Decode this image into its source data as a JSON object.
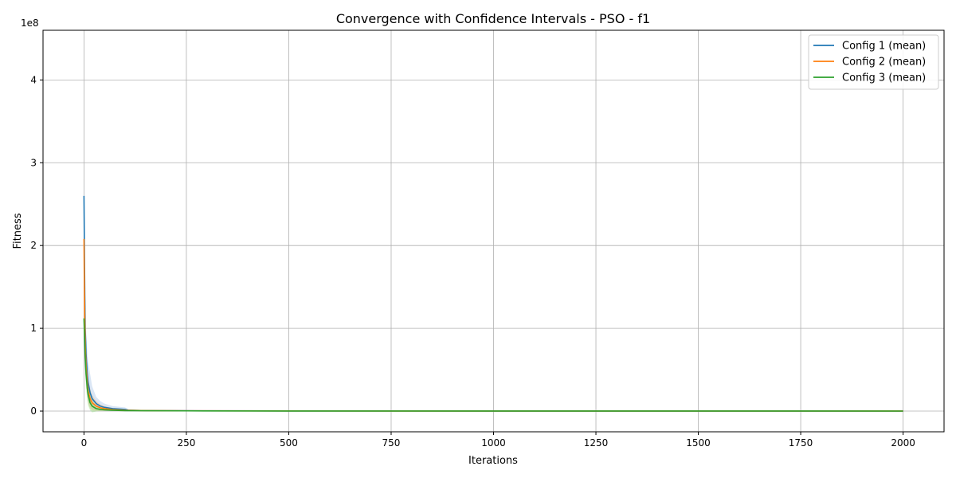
{
  "chart_data": {
    "type": "line",
    "title": "Convergence with Confidence Intervals - PSO - f1",
    "xlabel": "Iterations",
    "ylabel": "Fitness",
    "y_offset_label": "1e8",
    "xlim": [
      -100,
      2100
    ],
    "ylim": [
      -25000000,
      460000000
    ],
    "xticks": [
      0,
      250,
      500,
      750,
      1000,
      1250,
      1500,
      1750,
      2000
    ],
    "yticks": [
      0,
      100000000,
      200000000,
      300000000,
      400000000
    ],
    "ytick_labels": [
      "0",
      "1",
      "2",
      "3",
      "4"
    ],
    "grid": true,
    "legend_position": "top-right",
    "series": [
      {
        "name": "Config 1 (mean)",
        "color": "#1f77b4",
        "ci_color": "#aec7e8",
        "x": [
          0,
          1,
          2,
          3,
          5,
          8,
          10,
          15,
          20,
          30,
          40,
          50,
          70,
          100,
          110,
          150,
          250,
          500,
          1000,
          2000
        ],
        "y": [
          260000000,
          200000000,
          140000000,
          100000000,
          70000000,
          45000000,
          35000000,
          22000000,
          15000000,
          9000000,
          6000000,
          4500000,
          3000000,
          2000000,
          1000000,
          600000,
          400000,
          200000,
          100000,
          50000
        ],
        "ci_lower": [
          240000000,
          150000000,
          100000000,
          60000000,
          35000000,
          20000000,
          12000000,
          5000000,
          2000000,
          1000000,
          800000,
          700000,
          600000,
          500000,
          300000,
          200000,
          100000,
          50000,
          20000,
          10000
        ],
        "ci_upper": [
          280000000,
          250000000,
          180000000,
          140000000,
          100000000,
          75000000,
          60000000,
          45000000,
          30000000,
          17000000,
          12000000,
          9000000,
          6000000,
          4500000,
          1800000,
          1000000,
          800000,
          400000,
          200000,
          100000
        ]
      },
      {
        "name": "Config 2 (mean)",
        "color": "#ff7f0e",
        "ci_color": "#ffbb78",
        "x": [
          0,
          1,
          2,
          3,
          5,
          8,
          10,
          15,
          20,
          30,
          40,
          50,
          70,
          100,
          150,
          250,
          500,
          1000,
          2000
        ],
        "y": [
          208000000,
          150000000,
          110000000,
          80000000,
          55000000,
          35000000,
          25000000,
          15000000,
          10000000,
          6000000,
          4000000,
          3000000,
          1800000,
          1000000,
          600000,
          300000,
          150000,
          80000,
          40000
        ],
        "ci_lower": [
          190000000,
          120000000,
          85000000,
          55000000,
          35000000,
          18000000,
          10000000,
          3000000,
          1000000,
          500000,
          400000,
          300000,
          200000,
          100000,
          80000,
          50000,
          30000,
          15000,
          8000
        ],
        "ci_upper": [
          225000000,
          180000000,
          135000000,
          105000000,
          75000000,
          52000000,
          40000000,
          27000000,
          19000000,
          12000000,
          8000000,
          6000000,
          3500000,
          2000000,
          1200000,
          600000,
          300000,
          150000,
          80000
        ]
      },
      {
        "name": "Config 3 (mean)",
        "color": "#2ca02c",
        "ci_color": "#98df8a",
        "x": [
          0,
          1,
          2,
          3,
          5,
          8,
          10,
          15,
          20,
          30,
          40,
          50,
          70,
          100,
          150,
          250,
          500,
          1000,
          2000
        ],
        "y": [
          112000000,
          95000000,
          80000000,
          65000000,
          45000000,
          28000000,
          20000000,
          10000000,
          6000000,
          3000000,
          2000000,
          1500000,
          1000000,
          600000,
          400000,
          250000,
          120000,
          60000,
          30000
        ],
        "ci_lower": [
          100000000,
          80000000,
          62000000,
          48000000,
          28000000,
          14000000,
          7000000,
          1000000,
          -1500000,
          -500000,
          200000,
          300000,
          200000,
          100000,
          60000,
          40000,
          20000,
          10000,
          5000
        ],
        "ci_upper": [
          124000000,
          110000000,
          98000000,
          82000000,
          62000000,
          42000000,
          33000000,
          19000000,
          13000000,
          6500000,
          4000000,
          3000000,
          1800000,
          1100000,
          700000,
          450000,
          220000,
          110000,
          55000
        ]
      }
    ]
  }
}
